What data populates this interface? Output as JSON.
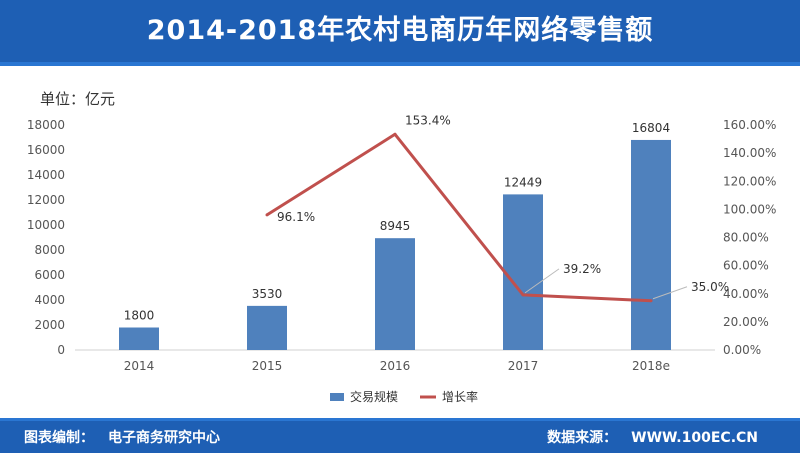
{
  "header": {
    "title": "2014-2018年农村电商历年网络零售额"
  },
  "unit_label": "单位：亿元",
  "footer": {
    "left_label": "图表编制：",
    "left_value": "电子商务研究中心",
    "right_label": "数据来源：",
    "right_value": "WWW.100EC.CN"
  },
  "colors": {
    "bar": "#4f81bd",
    "line": "#c0504d",
    "header": "#1e5fb4"
  },
  "chart_data": {
    "type": "bar",
    "categories": [
      "2014",
      "2015",
      "2016",
      "2017",
      "2018e"
    ],
    "series": [
      {
        "name": "交易规模",
        "type": "bar",
        "axis": "left",
        "values": [
          1800,
          3530,
          8945,
          12449,
          16804
        ],
        "labels": [
          "1800",
          "3530",
          "8945",
          "12449",
          "16804"
        ]
      },
      {
        "name": "增长率",
        "type": "line",
        "axis": "right",
        "values": [
          null,
          96.1,
          153.4,
          39.2,
          35.0
        ],
        "labels": [
          "",
          "96.1%",
          "153.4%",
          "39.2%",
          "35.0%"
        ]
      }
    ],
    "ylim": [
      0,
      18000
    ],
    "yticks": [
      "0",
      "2000",
      "4000",
      "6000",
      "8000",
      "10000",
      "12000",
      "14000",
      "16000",
      "18000"
    ],
    "y2lim": [
      0,
      160
    ],
    "y2ticks": [
      "0.00%",
      "20.00%",
      "40.00%",
      "60.00%",
      "80.00%",
      "100.00%",
      "120.00%",
      "140.00%",
      "160.00%"
    ],
    "legend": "bottom",
    "grid": false
  }
}
